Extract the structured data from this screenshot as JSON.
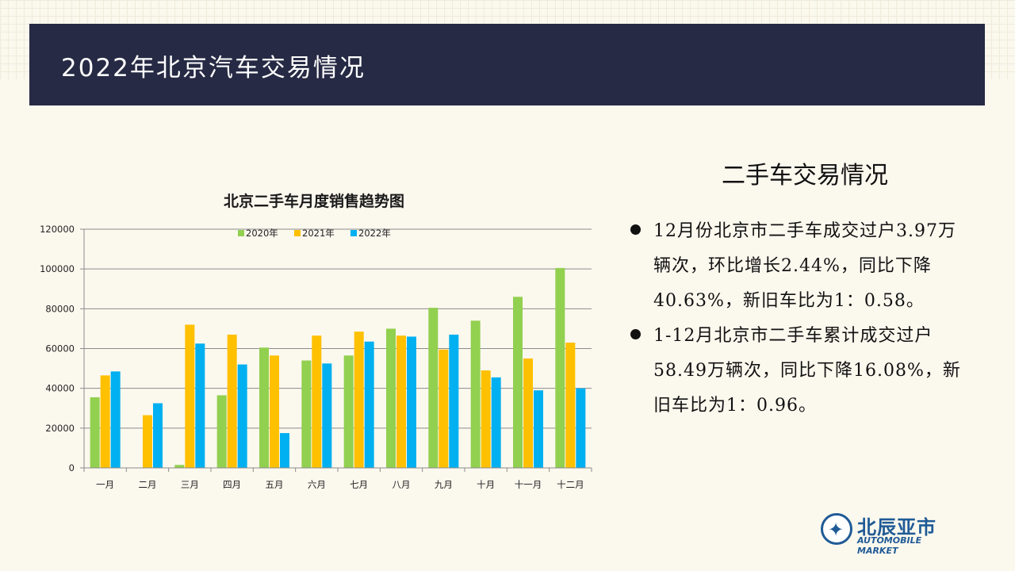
{
  "header": {
    "title": "2022年北京汽车交易情况"
  },
  "section_title": "二手车交易情况",
  "bullets": [
    "12月份北京市二手车成交过户3.97万辆次，环比增长2.44%，同比下降40.63%，新旧车比为1：0.58。",
    "1-12月北京市二手车累计成交过户58.49万辆次，同比下降16.08%，新旧车比为1：0.96。"
  ],
  "logo": {
    "cn": "北辰亚市",
    "en": "AUTOMOBILE MARKET"
  },
  "colors": {
    "header_bg": "#262a44",
    "series_2020": "#92d050",
    "series_2021": "#ffc000",
    "series_2022": "#00b0f0"
  },
  "chart_data": {
    "type": "bar",
    "title": "北京二手车月度销售趋势图",
    "categories": [
      "一月",
      "二月",
      "三月",
      "四月",
      "五月",
      "六月",
      "七月",
      "八月",
      "九月",
      "十月",
      "十一月",
      "十二月"
    ],
    "series": [
      {
        "name": "2020年",
        "color": "#92d050",
        "values": [
          35500,
          0,
          1500,
          36500,
          60500,
          54000,
          56500,
          70000,
          80500,
          74000,
          86000,
          100500
        ]
      },
      {
        "name": "2021年",
        "color": "#ffc000",
        "values": [
          46500,
          26500,
          72000,
          67000,
          56500,
          66500,
          68500,
          66500,
          59500,
          49000,
          55000,
          63000
        ]
      },
      {
        "name": "2022年",
        "color": "#00b0f0",
        "values": [
          48500,
          32500,
          62500,
          52000,
          17500,
          52500,
          63500,
          66000,
          67000,
          45500,
          39000,
          40000
        ]
      }
    ],
    "ylim": [
      0,
      120000
    ],
    "yticks": [
      0,
      20000,
      40000,
      60000,
      80000,
      100000,
      120000
    ],
    "grid": true,
    "legend_position": "top-center",
    "xlabel": "",
    "ylabel": ""
  }
}
